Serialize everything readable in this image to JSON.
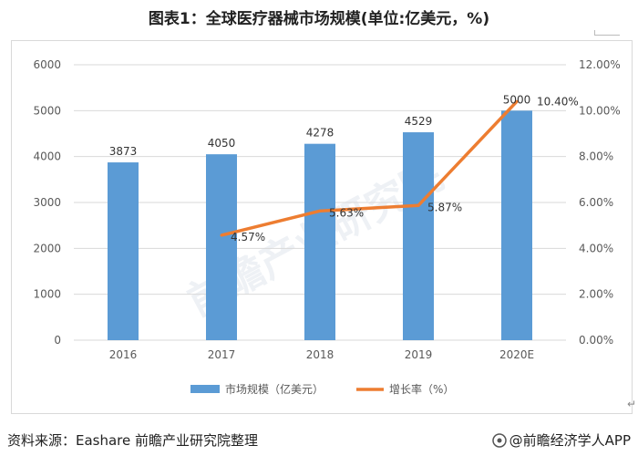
{
  "title": "图表1：全球医疗器械市场规模(单位:亿美元，%)",
  "source": "资料来源：Eashare 前瞻产业研究院整理",
  "brand": "@前瞻经济学人APP",
  "watermark": "前瞻产业研究院",
  "colors": {
    "bar": "#5b9bd5",
    "line": "#ed7d31",
    "grid": "#d9d9d9",
    "text": "#595959"
  },
  "chart_data": {
    "type": "bar+line",
    "categories": [
      "2016",
      "2017",
      "2018",
      "2019",
      "2020E"
    ],
    "series": [
      {
        "name": "市场规模（亿美元）",
        "type": "bar",
        "axis": "left",
        "values": [
          3873,
          4050,
          4278,
          4529,
          5000
        ],
        "labels": [
          "3873",
          "4050",
          "4278",
          "4529",
          "5000"
        ]
      },
      {
        "name": "增长率（%）",
        "type": "line",
        "axis": "right",
        "values": [
          null,
          4.57,
          5.63,
          5.87,
          10.4
        ],
        "labels": [
          "",
          "4.57%",
          "5.63%",
          "5.87%",
          "10.40%"
        ]
      }
    ],
    "y_left": {
      "min": 0,
      "max": 6000,
      "ticks": [
        "0",
        "1000",
        "2000",
        "3000",
        "4000",
        "5000",
        "6000"
      ]
    },
    "y_right": {
      "min": 0,
      "max": 12,
      "ticks": [
        "0.00%",
        "2.00%",
        "4.00%",
        "6.00%",
        "8.00%",
        "10.00%",
        "12.00%"
      ]
    },
    "legend": [
      "市场规模（亿美元）",
      "增长率（%）"
    ],
    "legend_position": "bottom",
    "grid": true
  }
}
